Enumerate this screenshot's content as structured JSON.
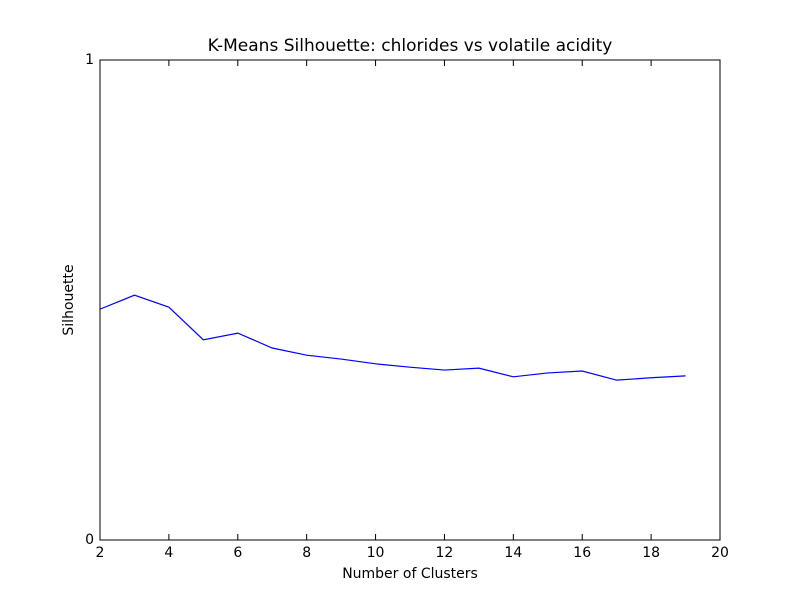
{
  "chart_data": {
    "type": "line",
    "title": "K-Means Silhouette: chlorides vs volatile acidity",
    "x_label": "Number of Clusters",
    "y_label": "Silhouette",
    "x": [
      2,
      3,
      4,
      5,
      6,
      7,
      8,
      9,
      10,
      11,
      12,
      13,
      14,
      15,
      16,
      17,
      18,
      19
    ],
    "series": [
      {
        "color": "#0000ff",
        "values": [
          0.481,
          0.51,
          0.485,
          0.417,
          0.431,
          0.4,
          0.385,
          0.377,
          0.367,
          0.36,
          0.354,
          0.358,
          0.34,
          0.348,
          0.352,
          0.333,
          0.338,
          0.342
        ]
      }
    ],
    "xlim": [
      2,
      20
    ],
    "xticks": [
      2,
      4,
      6,
      8,
      10,
      12,
      14,
      16,
      18,
      20
    ],
    "ylim": [
      0,
      1
    ],
    "yticks": [
      0,
      1
    ],
    "grid": false
  }
}
